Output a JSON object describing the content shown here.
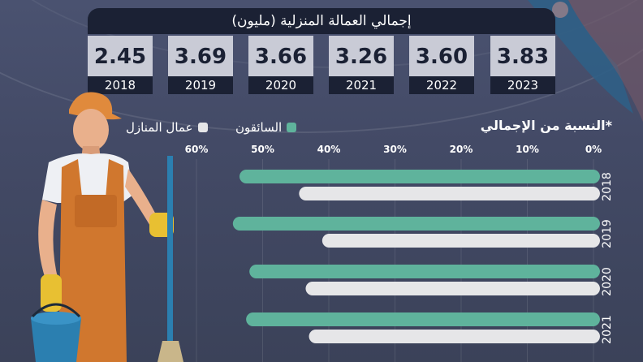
{
  "header": {
    "title": "إجمالي العمالة المنزلية (مليون)",
    "totals": [
      {
        "year": "2018",
        "value": "2.45"
      },
      {
        "year": "2019",
        "value": "3.69"
      },
      {
        "year": "2020",
        "value": "3.66"
      },
      {
        "year": "2021",
        "value": "3.26"
      },
      {
        "year": "2022",
        "value": "3.60"
      },
      {
        "year": "2023",
        "value": "3.83"
      }
    ]
  },
  "legend": {
    "title": "*النسبة من الإجمالي",
    "drivers": "السائقون",
    "housekeepers": "عمال المنازل"
  },
  "colors": {
    "drivers": "#5fb39c",
    "housekeepers": "#e6e6e8",
    "dark": "#1b2134"
  },
  "chart_data": {
    "type": "bar",
    "orientation": "horizontal",
    "direction": "right-to-left",
    "xlim": [
      0,
      60
    ],
    "ticks": [
      "0%",
      "10%",
      "20%",
      "30%",
      "40%",
      "50%",
      "60%"
    ],
    "categories": [
      "2018",
      "2019",
      "2020",
      "2021"
    ],
    "series": [
      {
        "name": "السائقون",
        "values": [
          53.5,
          54.5,
          52,
          52.5
        ]
      },
      {
        "name": "عمال المنازل",
        "values": [
          44.5,
          41,
          43.5,
          43
        ]
      }
    ]
  }
}
